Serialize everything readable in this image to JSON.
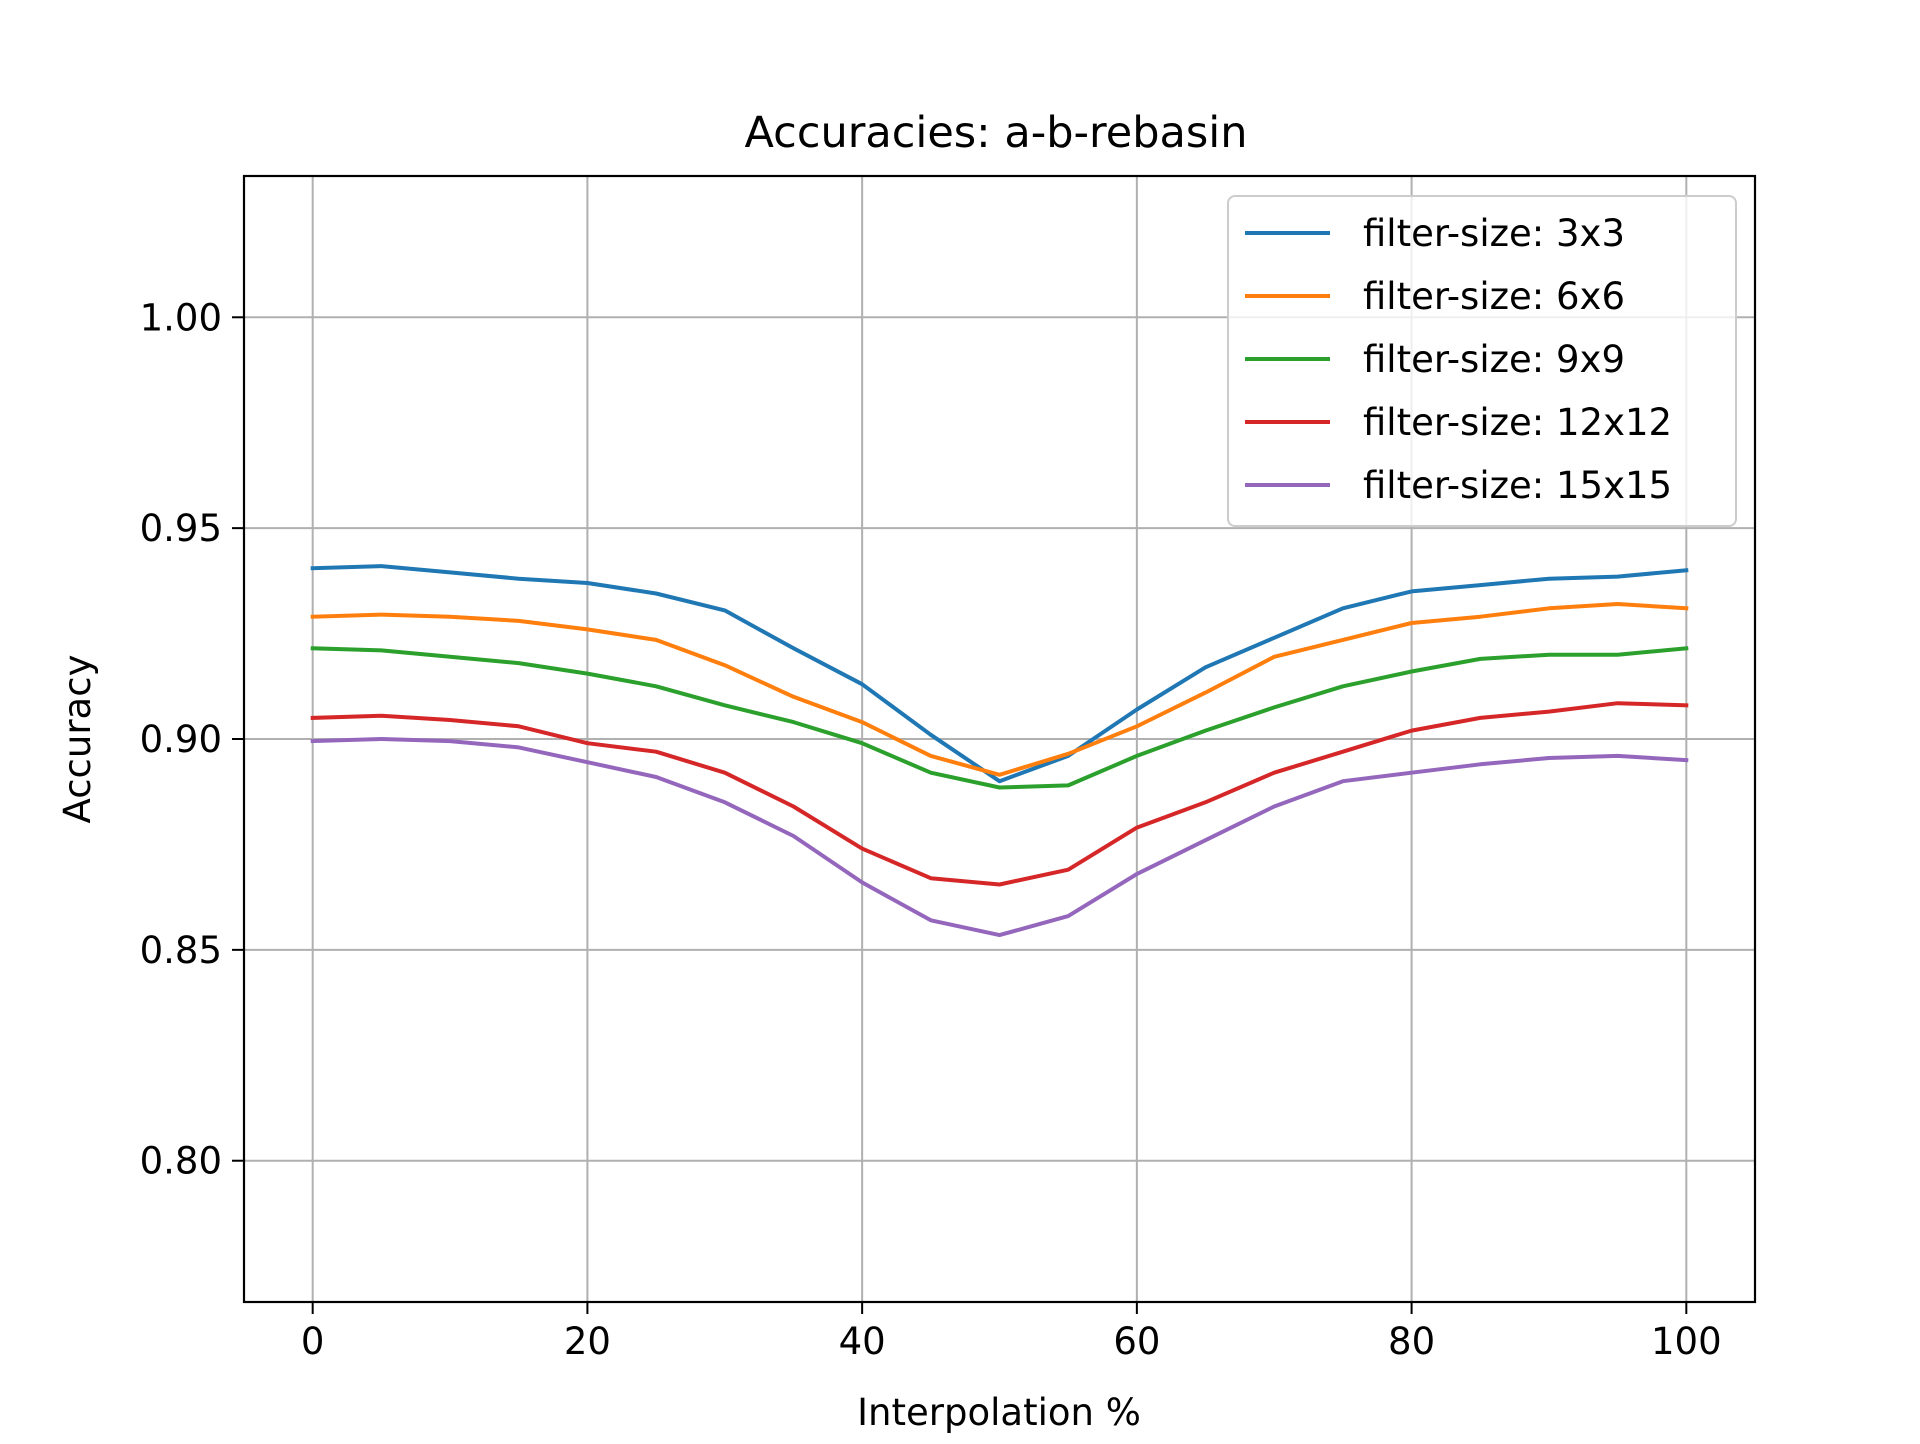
{
  "chart_data": {
    "type": "line",
    "title": "Accuracies: a-b-rebasin",
    "xlabel": "Interpolation %",
    "ylabel": "Accuracy",
    "xlim": [
      -5,
      105
    ],
    "ylim": [
      0.7665,
      1.0335
    ],
    "xticks": [
      0,
      20,
      40,
      60,
      80,
      100
    ],
    "xtick_labels": [
      "0",
      "20",
      "40",
      "60",
      "80",
      "100"
    ],
    "yticks": [
      0.8,
      0.85,
      0.9,
      0.95,
      1.0
    ],
    "ytick_labels": [
      "0.80",
      "0.85",
      "0.90",
      "0.95",
      "1.00"
    ],
    "grid": true,
    "legend_position": "top-right",
    "x": [
      0,
      5,
      10,
      15,
      20,
      25,
      30,
      35,
      40,
      45,
      50,
      55,
      60,
      65,
      70,
      75,
      80,
      85,
      90,
      95,
      100
    ],
    "series": [
      {
        "name": "filter-size: 3x3",
        "color": "#1f77b4",
        "values": [
          0.9405,
          0.941,
          0.9395,
          0.938,
          0.937,
          0.9345,
          0.9305,
          0.9215,
          0.913,
          0.901,
          0.89,
          0.896,
          0.907,
          0.917,
          0.924,
          0.931,
          0.935,
          0.9365,
          0.938,
          0.9385,
          0.94
        ]
      },
      {
        "name": "filter-size: 6x6",
        "color": "#ff7f0e",
        "values": [
          0.929,
          0.9295,
          0.929,
          0.928,
          0.926,
          0.9235,
          0.9175,
          0.91,
          0.904,
          0.896,
          0.8915,
          0.8965,
          0.903,
          0.911,
          0.9195,
          0.9235,
          0.9275,
          0.929,
          0.931,
          0.932,
          0.931
        ]
      },
      {
        "name": "filter-size: 9x9",
        "color": "#2ca02c",
        "values": [
          0.9215,
          0.921,
          0.9195,
          0.918,
          0.9155,
          0.9125,
          0.908,
          0.904,
          0.899,
          0.892,
          0.8885,
          0.889,
          0.896,
          0.902,
          0.9075,
          0.9125,
          0.916,
          0.919,
          0.92,
          0.92,
          0.9215
        ]
      },
      {
        "name": "filter-size: 12x12",
        "color": "#d62728",
        "values": [
          0.905,
          0.9055,
          0.9045,
          0.903,
          0.899,
          0.897,
          0.892,
          0.884,
          0.874,
          0.867,
          0.8655,
          0.869,
          0.879,
          0.885,
          0.892,
          0.897,
          0.902,
          0.905,
          0.9065,
          0.9085,
          0.908
        ]
      },
      {
        "name": "filter-size: 15x15",
        "color": "#9467bd",
        "values": [
          0.8995,
          0.9,
          0.8995,
          0.898,
          0.8945,
          0.891,
          0.885,
          0.877,
          0.866,
          0.857,
          0.8535,
          0.858,
          0.868,
          0.876,
          0.884,
          0.89,
          0.892,
          0.894,
          0.8955,
          0.896,
          0.895
        ]
      }
    ]
  }
}
